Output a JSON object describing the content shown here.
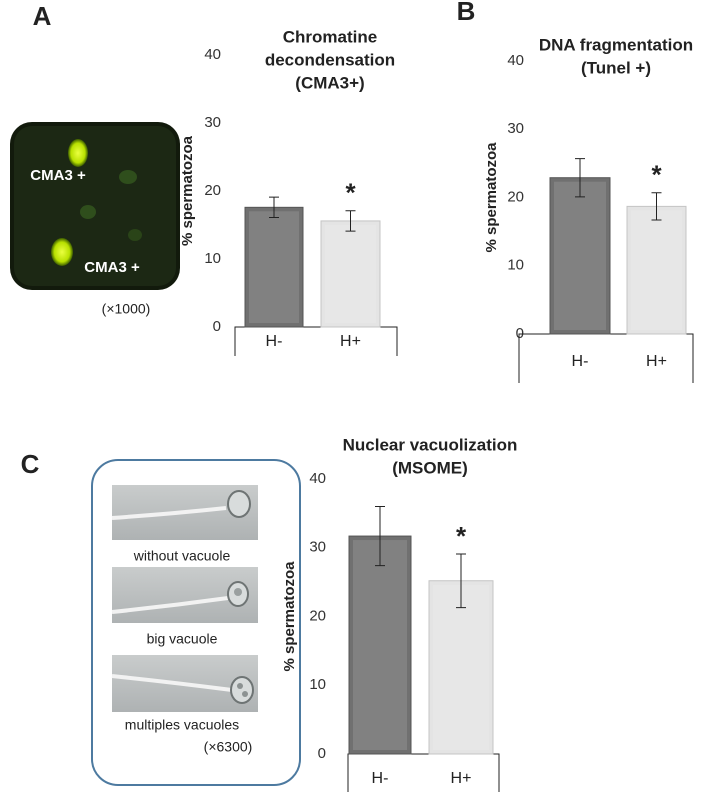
{
  "chart_data": [
    {
      "type": "bar",
      "panel": "A",
      "title": [
        "Chromatine",
        "decondensation",
        "(CMA3+)"
      ],
      "ylabel": "% spermatozoa",
      "categories": [
        "H-",
        "H+"
      ],
      "values": [
        17.6,
        15.6
      ],
      "errors": [
        1.5,
        1.5
      ],
      "colors": [
        "#707070",
        "#e4e4e4"
      ],
      "ylim": [
        0,
        40
      ],
      "yticks": [
        0,
        10,
        20,
        30,
        40
      ],
      "annotation": "*",
      "image_labels": [
        "CMA3 +",
        "CMA3 +"
      ],
      "magnification": "(×1000)"
    },
    {
      "type": "bar",
      "panel": "B",
      "title": [
        "DNA fragmentation",
        "(Tunel +)"
      ],
      "ylabel": "% spermatozoa",
      "categories": [
        "H-",
        "H+"
      ],
      "values": [
        22.9,
        18.7
      ],
      "errors": [
        2.8,
        2.0
      ],
      "colors": [
        "#707070",
        "#e4e4e4"
      ],
      "ylim": [
        0,
        40
      ],
      "yticks": [
        0,
        10,
        20,
        30,
        40
      ],
      "annotation": "*"
    },
    {
      "type": "bar",
      "panel": "C",
      "title": [
        "Nuclear vacuolization",
        "(MSOME)"
      ],
      "ylabel": "% spermatozoa",
      "categories": [
        "H-",
        "H+"
      ],
      "values": [
        31.7,
        25.2
      ],
      "errors": [
        4.3,
        3.9
      ],
      "colors": [
        "#707070",
        "#e4e4e4"
      ],
      "ylim": [
        0,
        40
      ],
      "yticks": [
        0,
        10,
        20,
        30,
        40
      ],
      "annotation": "*",
      "image_labels": [
        "without vacuole",
        "big vacuole",
        "multiples vacuoles"
      ],
      "magnification": "(×6300)"
    }
  ]
}
